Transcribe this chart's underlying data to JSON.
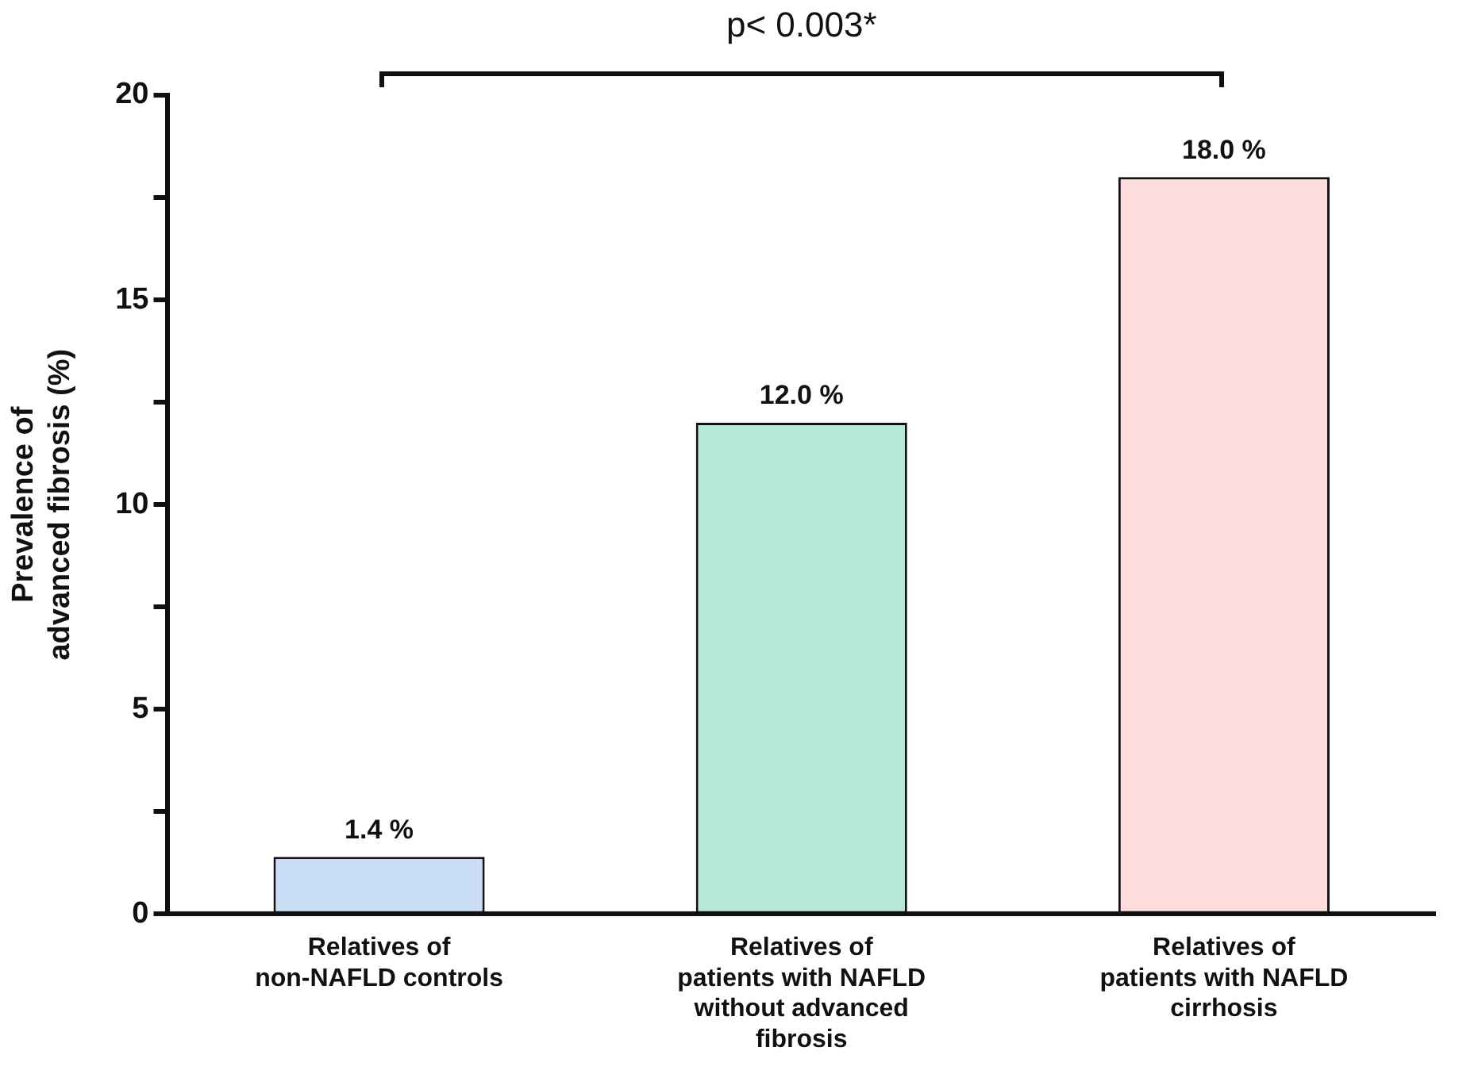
{
  "chart_data": {
    "type": "bar",
    "ylabel": "Prevalence of\nadvanced fibrosis (%)",
    "categories": [
      "Relatives of non-NAFLD controls",
      "Relatives of patients with NAFLD without advanced fibrosis",
      "Relatives of patients with NAFLD cirrhosis"
    ],
    "values": [
      1.4,
      12.0,
      18.0
    ],
    "colors": [
      "#c9ddf5",
      "#b5e8d6",
      "#fddcdc"
    ],
    "value_labels": [
      "1.4 %",
      "12.0 %",
      "18.0 %"
    ],
    "ylim": [
      0,
      20
    ],
    "yticks": [
      0,
      {
        "value": 2.5,
        "label": null
      },
      5,
      {
        "value": 7.5,
        "label": null
      },
      10,
      {
        "value": 12.5,
        "label": null
      },
      15,
      {
        "value": 17.5,
        "label": null
      },
      20
    ],
    "grid": false,
    "annotations": [
      "p< 0.003*"
    ]
  }
}
